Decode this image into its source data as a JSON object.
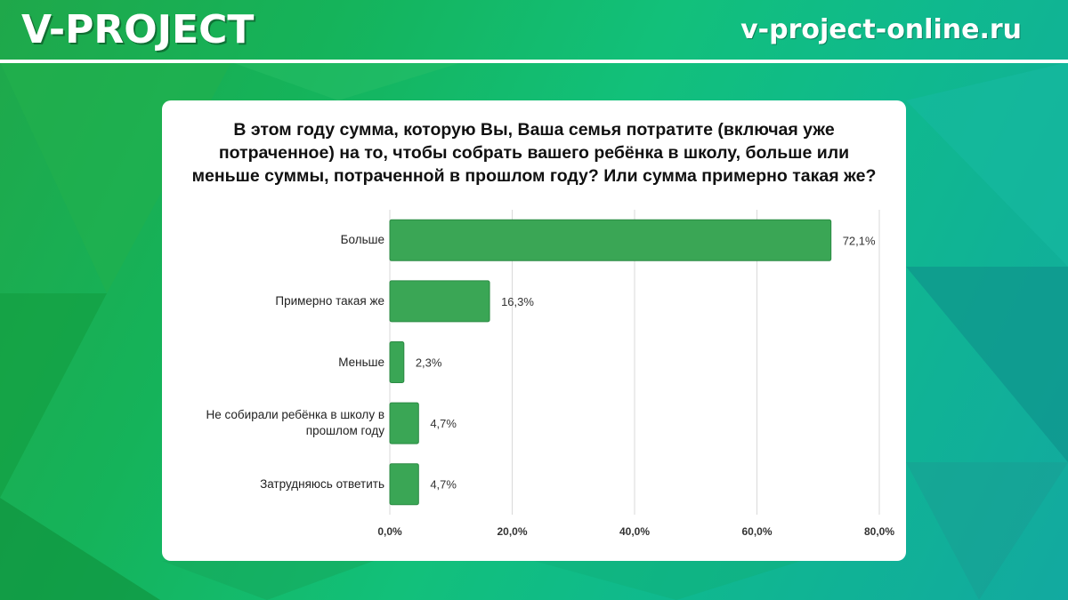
{
  "header": {
    "brand": "V-PROJECT",
    "site": "v-project-online.ru"
  },
  "colors": {
    "bar": "#3aa655",
    "bar_border": "#2b8a43",
    "grid": "#d9d9d9",
    "card": "#ffffff"
  },
  "chart_data": {
    "type": "bar",
    "orientation": "horizontal",
    "title_lines": [
      "В этом году сумма, которую Вы, Ваша семья потратите (включая уже",
      "потраченное) на то, чтобы собрать вашего ребёнка в школу, больше или",
      "меньше суммы, потраченной в прошлом году? Или сумма примерно такая же?"
    ],
    "categories": [
      [
        "Больше"
      ],
      [
        "Примерно такая же"
      ],
      [
        "Меньше"
      ],
      [
        "Не собирали ребёнка в школу в",
        "прошлом году"
      ],
      [
        "Затрудняюсь ответить"
      ]
    ],
    "values": [
      72.1,
      16.3,
      2.3,
      4.7,
      4.7
    ],
    "value_labels": [
      "72,1%",
      "16,3%",
      "2,3%",
      "4,7%",
      "4,7%"
    ],
    "xlim": [
      0,
      80
    ],
    "ticks": [
      0,
      20,
      40,
      60,
      80
    ],
    "tick_labels": [
      "0,0%",
      "20,0%",
      "40,0%",
      "60,0%",
      "80,0%"
    ],
    "grid": true
  }
}
